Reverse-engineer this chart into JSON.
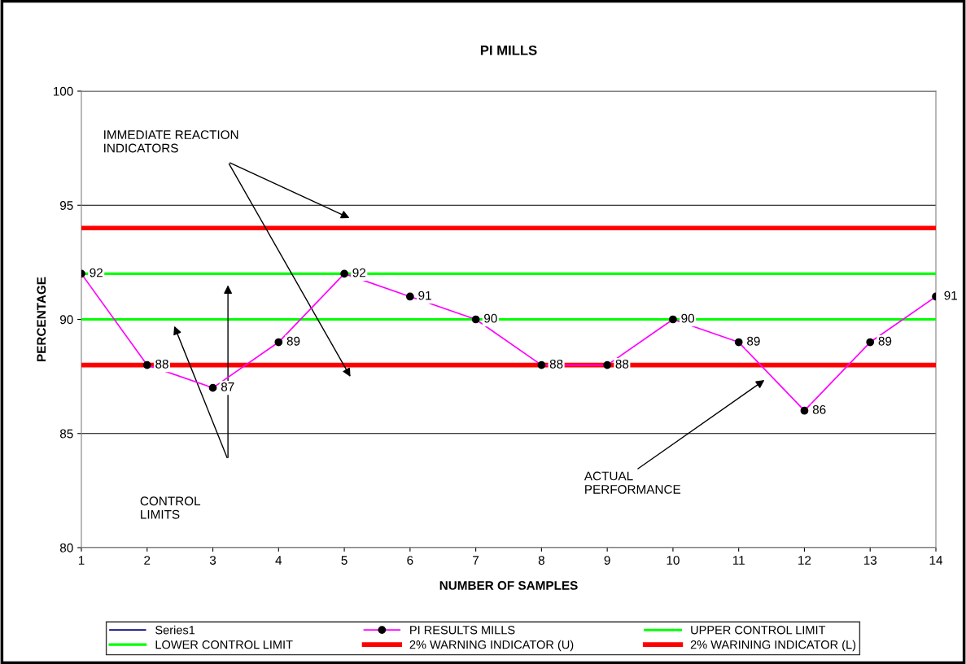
{
  "chart_data": {
    "type": "line",
    "title": "PI MILLS",
    "xlabel": "NUMBER OF SAMPLES",
    "ylabel": "PERCENTAGE",
    "categories": [
      "1",
      "2",
      "3",
      "4",
      "5",
      "6",
      "7",
      "8",
      "9",
      "10",
      "11",
      "12",
      "13",
      "14"
    ],
    "series": [
      {
        "name": "Series1",
        "color": "#000080",
        "values": [
          null,
          null,
          null,
          null,
          null,
          null,
          null,
          null,
          null,
          null,
          null,
          null,
          null,
          null
        ],
        "marker": "none"
      },
      {
        "name": "PI RESULTS MILLS",
        "color": "#ff00ff",
        "values": [
          92,
          88,
          87,
          89,
          92,
          91,
          90,
          88,
          88,
          90,
          89,
          86,
          89,
          91
        ],
        "marker": "circle",
        "data_labels": true
      },
      {
        "name": "UPPER CONTROL LIMIT",
        "color": "#00ff00",
        "values": [
          92,
          92,
          92,
          92,
          92,
          92,
          92,
          92,
          92,
          92,
          92,
          92,
          92,
          92
        ],
        "marker": "none"
      },
      {
        "name": "LOWER CONTROL LIMIT",
        "color": "#00ff00",
        "values": [
          90,
          90,
          90,
          90,
          90,
          90,
          90,
          90,
          90,
          90,
          90,
          90,
          90,
          90
        ],
        "marker": "none"
      },
      {
        "name": "2% WARNING INDICATOR (U)",
        "color": "#ff0000",
        "values": [
          94,
          94,
          94,
          94,
          94,
          94,
          94,
          94,
          94,
          94,
          94,
          94,
          94,
          94
        ],
        "marker": "none"
      },
      {
        "name": "2% WARINING INDICATOR (L)",
        "color": "#ff0000",
        "values": [
          88,
          88,
          88,
          88,
          88,
          88,
          88,
          88,
          88,
          88,
          88,
          88,
          88,
          88
        ],
        "marker": "none"
      }
    ],
    "ylim": [
      80,
      100
    ],
    "yticks": [
      80,
      85,
      90,
      95,
      100
    ],
    "grid": "y",
    "legend": "bottom",
    "annotations": [
      "IMMEDIATE REACTION\nINDICATORS",
      "CONTROL\nLIMITS",
      "ACTUAL\nPERFORMANCE"
    ]
  }
}
